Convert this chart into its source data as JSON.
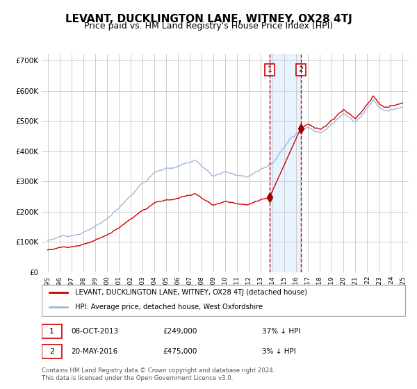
{
  "title": "LEVANT, DUCKLINGTON LANE, WITNEY, OX28 4TJ",
  "subtitle": "Price paid vs. HM Land Registry's House Price Index (HPI)",
  "title_fontsize": 11,
  "subtitle_fontsize": 9,
  "background_color": "#ffffff",
  "plot_bg_color": "#ffffff",
  "grid_color": "#cccccc",
  "hpi_color": "#a0b8d8",
  "price_color": "#cc0000",
  "marker_color": "#990000",
  "sale1_date_num": 2013.77,
  "sale1_price": 249000,
  "sale2_date_num": 2016.38,
  "sale2_price": 475000,
  "vline1_date": 2013.77,
  "vline2_date": 2016.38,
  "shade_start": 2013.77,
  "shade_end": 2016.38,
  "ylim": [
    0,
    720000
  ],
  "xlim_start": 1994.5,
  "xlim_end": 2025.5,
  "yticks": [
    0,
    100000,
    200000,
    300000,
    400000,
    500000,
    600000,
    700000
  ],
  "ytick_labels": [
    "£0",
    "£100K",
    "£200K",
    "£300K",
    "£400K",
    "£500K",
    "£600K",
    "£700K"
  ],
  "xticks": [
    1995,
    1996,
    1997,
    1998,
    1999,
    2000,
    2001,
    2002,
    2003,
    2004,
    2005,
    2006,
    2007,
    2008,
    2009,
    2010,
    2011,
    2012,
    2013,
    2014,
    2015,
    2016,
    2017,
    2018,
    2019,
    2020,
    2021,
    2022,
    2023,
    2024,
    2025
  ],
  "legend_label_price": "LEVANT, DUCKLINGTON LANE, WITNEY, OX28 4TJ (detached house)",
  "legend_label_hpi": "HPI: Average price, detached house, West Oxfordshire",
  "table_row1": [
    "1",
    "08-OCT-2013",
    "£249,000",
    "37% ↓ HPI"
  ],
  "table_row2": [
    "2",
    "20-MAY-2016",
    "£475,000",
    "3% ↓ HPI"
  ],
  "footnote": "Contains HM Land Registry data © Crown copyright and database right 2024.\nThis data is licensed under the Open Government Licence v3.0."
}
